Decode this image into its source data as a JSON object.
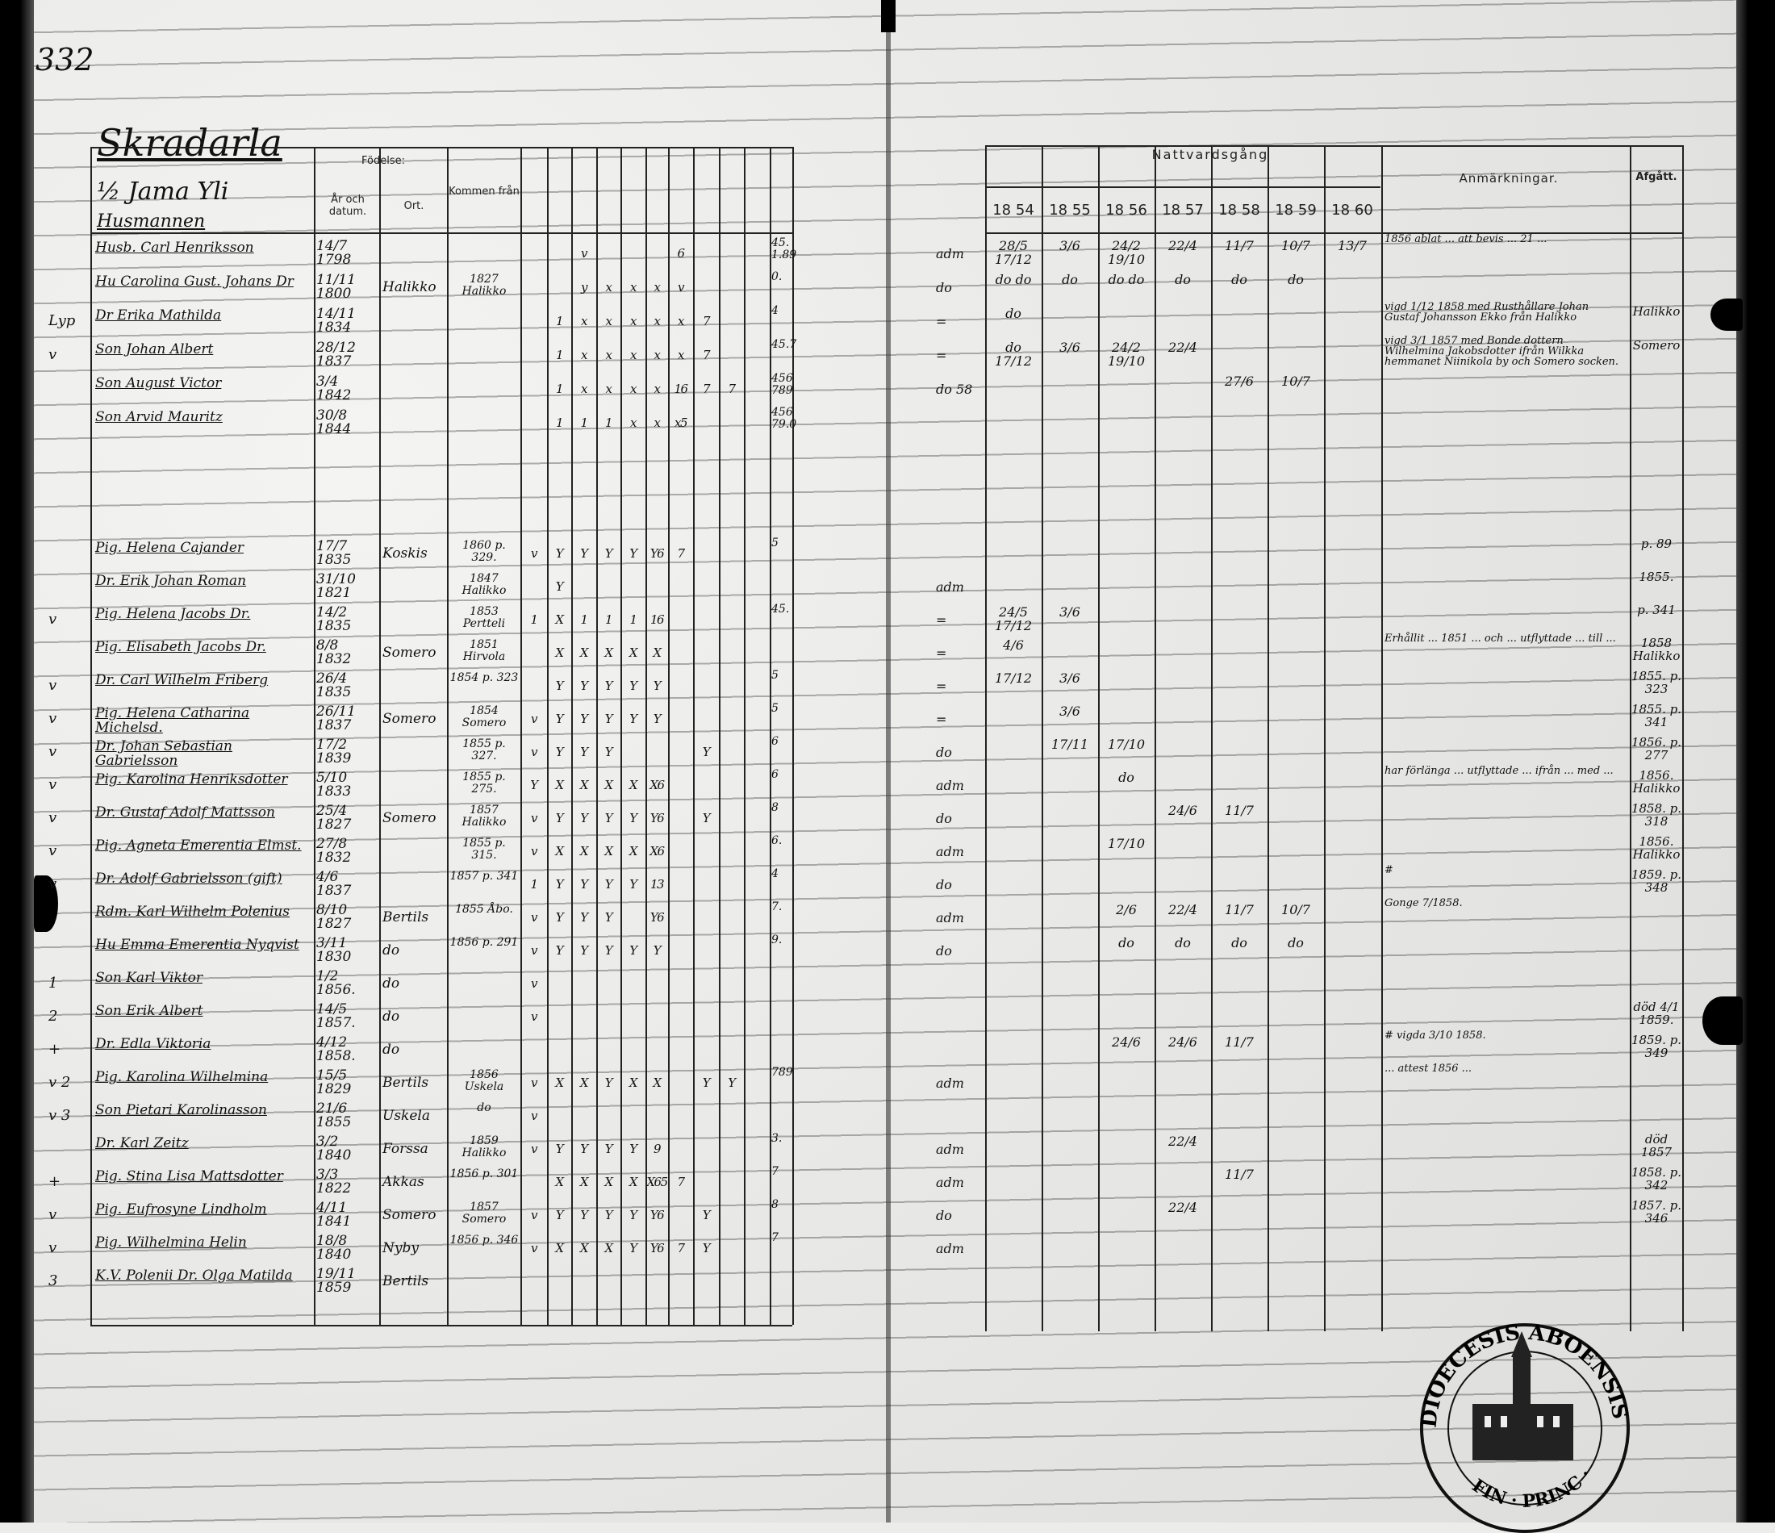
{
  "page_number": "332",
  "title": "Skradarla",
  "headers": {
    "birth": "Födelse:",
    "year_date": "År och datum.",
    "place": "Ort.",
    "came_from": "Kommen från",
    "communion": "Nattvardsgång",
    "remarks": "Anmärkningar.",
    "departed": "Afgått.",
    "years": [
      "18 54",
      "18 55",
      "18 56",
      "18 57",
      "18 58",
      "18 59",
      "18 60"
    ]
  },
  "household": {
    "farm": "½ Jama Yli",
    "status": "Husmannen"
  },
  "upper_rows": [
    {
      "lm": "",
      "n": "Husb. Carl Henriksson",
      "d": "14/7 1798",
      "p": "",
      "f": "",
      "m": [
        "",
        "",
        "v",
        "",
        "",
        "",
        "6",
        "",
        "",
        ""
      ],
      "c": "45. 1.89",
      "pre": "adm",
      "y": [
        "28/5 17/12",
        "3/6",
        "24/2 19/10",
        "22/4",
        "11/7",
        "10/7",
        "13/7"
      ],
      "r": "1856 ablat ... att bevis ... 21 ...",
      "a": ""
    },
    {
      "lm": "",
      "n": "Hu Carolina Gust. Johans Dr",
      "d": "11/11 1800",
      "p": "Halikko",
      "f": "1827 Halikko",
      "m": [
        "",
        "",
        "y",
        "x",
        "x",
        "x",
        "v",
        "",
        "",
        ""
      ],
      "c": "0.",
      "pre": "do",
      "y": [
        "do do",
        "do",
        "do do",
        "do",
        "do",
        "do",
        ""
      ],
      "r": "",
      "a": ""
    },
    {
      "lm": "Lyp",
      "n": "Dr Erika Mathilda",
      "d": "14/11 1834",
      "p": "",
      "f": "",
      "m": [
        "",
        "1",
        "x",
        "x",
        "x",
        "x",
        "x",
        "7",
        "",
        ""
      ],
      "c": "4",
      "pre": "=",
      "y": [
        "do",
        "",
        "",
        "",
        "",
        "",
        ""
      ],
      "r": "vigd 1/12 1858 med Rusthållare Johan Gustaf Johansson Ekko från Halikko",
      "a": "Halikko"
    },
    {
      "lm": "v",
      "n": "Son Johan Albert",
      "d": "28/12 1837",
      "p": "",
      "f": "",
      "m": [
        "",
        "1",
        "x",
        "x",
        "x",
        "x",
        "x",
        "7",
        "",
        ""
      ],
      "c": "45.7",
      "pre": "=",
      "y": [
        "do 17/12",
        "3/6",
        "24/2 19/10",
        "22/4",
        "",
        "",
        ""
      ],
      "r": "vigd 3/1 1857 med Bonde dottern Wilhelmina Jakobsdotter ifrån Wilkka hemmanet Niinikola by och Somero socken.",
      "a": "Somero"
    },
    {
      "lm": "",
      "n": "Son August Victor",
      "d": "3/4 1842",
      "p": "",
      "f": "",
      "m": [
        "",
        "1",
        "x",
        "x",
        "x",
        "x",
        "16",
        "7",
        "7",
        ""
      ],
      "c": "456 789",
      "pre": "do 58",
      "y": [
        "",
        "",
        "",
        "",
        "27/6",
        "10/7",
        ""
      ],
      "r": "",
      "a": ""
    },
    {
      "lm": "",
      "n": "Son Arvid Mauritz",
      "d": "30/8 1844",
      "p": "",
      "f": "",
      "m": [
        "",
        "1",
        "1",
        "1",
        "x",
        "x",
        "x5",
        "",
        "",
        ""
      ],
      "c": "456 79.0",
      "pre": "",
      "y": [
        "",
        "",
        "",
        "",
        "",
        "",
        ""
      ],
      "r": "",
      "a": ""
    }
  ],
  "lower_rows": [
    {
      "lm": "",
      "n": "Pig. Helena Cajander",
      "d": "17/7 1835",
      "p": "Koskis",
      "f": "1860 p. 329.",
      "m": [
        "v",
        "Y",
        "Y",
        "Y",
        "Y",
        "Y6",
        "7",
        "",
        "",
        ""
      ],
      "c": "5",
      "pre": "",
      "y": [
        "",
        "",
        "",
        "",
        "",
        "",
        ""
      ],
      "r": "",
      "a": "p. 89"
    },
    {
      "lm": "",
      "n": "Dr. Erik Johan Roman",
      "d": "31/10 1821",
      "p": "",
      "f": "1847 Halikko",
      "m": [
        "",
        "Y",
        "",
        "",
        "",
        "",
        "",
        "",
        "",
        ""
      ],
      "c": "",
      "pre": "adm",
      "y": [
        "",
        "",
        "",
        "",
        "",
        "",
        ""
      ],
      "r": "",
      "a": "1855."
    },
    {
      "lm": "v",
      "n": "Pig. Helena Jacobs Dr.",
      "d": "14/2 1835",
      "p": "",
      "f": "1853 Pertteli",
      "m": [
        "1",
        "X",
        "1",
        "1",
        "1",
        "16",
        "",
        "",
        "",
        ""
      ],
      "c": "45.",
      "pre": "=",
      "y": [
        "24/5 17/12",
        "3/6",
        "",
        "",
        "",
        "",
        ""
      ],
      "r": "",
      "a": "p. 341"
    },
    {
      "lm": "",
      "n": "Pig. Elisabeth Jacobs Dr.",
      "d": "8/8 1832",
      "p": "Somero",
      "f": "1851 Hirvola",
      "m": [
        "",
        "X",
        "X",
        "X",
        "X",
        "X",
        "",
        "",
        "",
        ""
      ],
      "c": "",
      "pre": "=",
      "y": [
        "4/6",
        "",
        "",
        "",
        "",
        "",
        ""
      ],
      "r": "Erhållit ... 1851 ... och ... utflyttade ... till ...",
      "a": "1858 Halikko"
    },
    {
      "lm": "v",
      "n": "Dr. Carl Wilhelm Friberg",
      "d": "26/4 1835",
      "p": "",
      "f": "1854 p. 323",
      "m": [
        "",
        "Y",
        "Y",
        "Y",
        "Y",
        "Y",
        "",
        "",
        "",
        ""
      ],
      "c": "5",
      "pre": "=",
      "y": [
        "17/12",
        "3/6",
        "",
        "",
        "",
        "",
        ""
      ],
      "r": "",
      "a": "1855. p. 323"
    },
    {
      "lm": "v",
      "n": "Pig. Helena Catharina Michelsd.",
      "d": "26/11 1837",
      "p": "Somero",
      "f": "1854 Somero",
      "m": [
        "v",
        "Y",
        "Y",
        "Y",
        "Y",
        "Y",
        "",
        "",
        "",
        ""
      ],
      "c": "5",
      "pre": "=",
      "y": [
        "",
        "3/6",
        "",
        "",
        "",
        "",
        ""
      ],
      "r": "",
      "a": "1855. p. 341"
    },
    {
      "lm": "v",
      "n": "Dr. Johan Sebastian Gabrielsson",
      "d": "17/2 1839",
      "p": "",
      "f": "1855 p. 327.",
      "m": [
        "v",
        "Y",
        "Y",
        "Y",
        "",
        "",
        "",
        "Y",
        "",
        ""
      ],
      "c": "6",
      "pre": "do",
      "y": [
        "",
        "17/11",
        "17/10",
        "",
        "",
        "",
        ""
      ],
      "r": "",
      "a": "1856. p. 277"
    },
    {
      "lm": "v",
      "n": "Pig. Karolina Henriksdotter",
      "d": "5/10 1833",
      "p": "",
      "f": "1855 p. 275.",
      "m": [
        "Y",
        "X",
        "X",
        "X",
        "X",
        "X6",
        "",
        "",
        "",
        ""
      ],
      "c": "6",
      "pre": "adm",
      "y": [
        "",
        "",
        "do",
        "",
        "",
        "",
        ""
      ],
      "r": "har förlänga ... utflyttade ... ifrån ... med ...",
      "a": "1856. Halikko"
    },
    {
      "lm": "v",
      "n": "Dr. Gustaf Adolf Mattsson",
      "d": "25/4 1827",
      "p": "Somero",
      "f": "1857 Halikko",
      "m": [
        "v",
        "Y",
        "Y",
        "Y",
        "Y",
        "Y6",
        "",
        "Y",
        "",
        ""
      ],
      "c": "8",
      "pre": "do",
      "y": [
        "",
        "",
        "",
        "24/6",
        "11/7",
        "",
        ""
      ],
      "r": "",
      "a": "1858. p. 318"
    },
    {
      "lm": "v",
      "n": "Pig. Agneta Emerentia Elmst.",
      "d": "27/8 1832",
      "p": "",
      "f": "1855 p. 315.",
      "m": [
        "v",
        "X",
        "X",
        "X",
        "X",
        "X6",
        "",
        "",
        "",
        ""
      ],
      "c": "6.",
      "pre": "adm",
      "y": [
        "",
        "",
        "17/10",
        "",
        "",
        "",
        ""
      ],
      "r": "",
      "a": "1856. Halikko"
    },
    {
      "lm": "v",
      "n": "Dr. Adolf Gabrielsson (gift)",
      "d": "4/6 1837",
      "p": "",
      "f": "1857 p. 341",
      "m": [
        "1",
        "Y",
        "Y",
        "Y",
        "Y",
        "13",
        "",
        "",
        "",
        ""
      ],
      "c": "4",
      "pre": "do",
      "y": [
        "",
        "",
        "",
        "",
        "",
        "",
        ""
      ],
      "r": "#",
      "a": "1859. p. 348"
    },
    {
      "lm": "",
      "n": "Rdm. Karl Wilhelm Polenius",
      "d": "8/10 1827",
      "p": "Bertils",
      "f": "1855 Åbo.",
      "m": [
        "v",
        "Y",
        "Y",
        "Y",
        "",
        "Y6",
        "",
        "",
        "",
        ""
      ],
      "c": "7.",
      "pre": "adm",
      "y": [
        "",
        "",
        "2/6",
        "22/4",
        "11/7",
        "10/7",
        ""
      ],
      "r": "Gonge 7/1858.",
      "a": ""
    },
    {
      "lm": "",
      "n": "Hu Emma Emerentia Nyqvist",
      "d": "3/11 1830",
      "p": "do",
      "f": "1856 p. 291",
      "m": [
        "v",
        "Y",
        "Y",
        "Y",
        "Y",
        "Y",
        "",
        "",
        "",
        ""
      ],
      "c": "9.",
      "pre": "do",
      "y": [
        "",
        "",
        "do",
        "do",
        "do",
        "do",
        ""
      ],
      "r": "",
      "a": ""
    },
    {
      "lm": "1",
      "n": "Son Karl Viktor",
      "d": "1/2 1856.",
      "p": "do",
      "f": "",
      "m": [
        "v",
        "",
        "",
        "",
        "",
        "",
        "",
        "",
        "",
        ""
      ],
      "c": "",
      "pre": "",
      "y": [
        "",
        "",
        "",
        "",
        "",
        "",
        ""
      ],
      "r": "",
      "a": ""
    },
    {
      "lm": "2",
      "n": "Son Erik Albert",
      "d": "14/5 1857.",
      "p": "do",
      "f": "",
      "m": [
        "v",
        "",
        "",
        "",
        "",
        "",
        "",
        "",
        "",
        ""
      ],
      "c": "",
      "pre": "",
      "y": [
        "",
        "",
        "",
        "",
        "",
        "",
        ""
      ],
      "r": "",
      "a": "död 4/1 1859."
    },
    {
      "lm": "+",
      "n": "Dr. Edla Viktoria",
      "d": "4/12 1858.",
      "p": "do",
      "f": "",
      "m": [
        "",
        "",
        "",
        "",
        "",
        "",
        "",
        "",
        "",
        ""
      ],
      "c": "",
      "pre": "",
      "y": [
        "",
        "",
        "24/6",
        "24/6",
        "11/7",
        "",
        ""
      ],
      "r": "# vigda 3/10 1858.",
      "a": "1859. p. 349"
    },
    {
      "lm": "v 2",
      "n": "Pig. Karolina Wilhelmina",
      "d": "15/5 1829",
      "p": "Bertils",
      "f": "1856 Uskela",
      "m": [
        "v",
        "X",
        "X",
        "Y",
        "X",
        "X",
        "",
        "Y",
        "Y",
        ""
      ],
      "c": "789",
      "pre": "adm",
      "y": [
        "",
        "",
        "",
        "",
        "",
        "",
        ""
      ],
      "r": "... attest 1856 ...",
      "a": ""
    },
    {
      "lm": "v 3",
      "n": "Son Pietari Karolinasson",
      "d": "21/6 1855",
      "p": "Uskela",
      "f": "do",
      "m": [
        "v",
        "",
        "",
        "",
        "",
        "",
        "",
        "",
        "",
        ""
      ],
      "c": "",
      "pre": "",
      "y": [
        "",
        "",
        "",
        "",
        "",
        "",
        ""
      ],
      "r": "",
      "a": ""
    },
    {
      "lm": "",
      "n": "Dr. Karl Zeitz",
      "d": "3/2 1840",
      "p": "Forssa",
      "f": "1859 Halikko",
      "m": [
        "v",
        "Y",
        "Y",
        "Y",
        "Y",
        "9",
        "",
        "",
        "",
        ""
      ],
      "c": "3.",
      "pre": "adm",
      "y": [
        "",
        "",
        "",
        "22/4",
        "",
        "",
        ""
      ],
      "r": "",
      "a": "död 1857"
    },
    {
      "lm": "+",
      "n": "Pig. Stina Lisa Mattsdotter",
      "d": "3/3 1822",
      "p": "Akkas",
      "f": "1856 p. 301",
      "m": [
        "",
        "X",
        "X",
        "X",
        "X",
        "X65",
        "7",
        "",
        "",
        ""
      ],
      "c": "7",
      "pre": "adm",
      "y": [
        "",
        "",
        "",
        "",
        "11/7",
        "",
        ""
      ],
      "r": "",
      "a": "1858. p. 342"
    },
    {
      "lm": "v",
      "n": "Pig. Eufrosyne Lindholm",
      "d": "4/11 1841",
      "p": "Somero",
      "f": "1857 Somero",
      "m": [
        "v",
        "Y",
        "Y",
        "Y",
        "Y",
        "Y6",
        "",
        "Y",
        "",
        ""
      ],
      "c": "8",
      "pre": "do",
      "y": [
        "",
        "",
        "",
        "22/4",
        "",
        "",
        ""
      ],
      "r": "",
      "a": "1857. p. 346"
    },
    {
      "lm": "v",
      "n": "Pig. Wilhelmina Helin",
      "d": "18/8 1840",
      "p": "Nyby",
      "f": "1856 p. 346",
      "m": [
        "v",
        "X",
        "X",
        "X",
        "Y",
        "Y6",
        "7",
        "Y",
        "",
        ""
      ],
      "c": "7",
      "pre": "adm",
      "y": [
        "",
        "",
        "",
        "",
        "",
        "",
        ""
      ],
      "r": "",
      "a": ""
    },
    {
      "lm": "3",
      "n": "K.V. Polenii Dr. Olga Matilda",
      "d": "19/11 1859",
      "p": "Bertils",
      "f": "",
      "m": [
        "",
        "",
        "",
        "",
        "",
        "",
        "",
        "",
        "",
        ""
      ],
      "c": "",
      "pre": "",
      "y": [
        "",
        "",
        "",
        "",
        "",
        "",
        ""
      ],
      "r": "",
      "a": ""
    }
  ],
  "stamp": {
    "top_text": "DIOECESIS ABOENSIS",
    "bottom_text": "FIN · PRINC ·"
  }
}
